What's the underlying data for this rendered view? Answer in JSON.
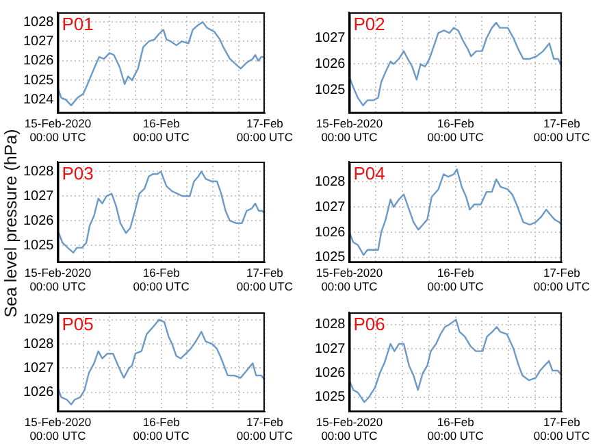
{
  "chart_data": [
    {
      "type": "line",
      "title": "P01",
      "xlim": [
        "2020-02-15T00:00",
        "2020-02-17T00:00"
      ],
      "ylim": [
        1023.3,
        1028.5
      ],
      "yticks": [
        1024,
        1025,
        1026,
        1027,
        1028
      ],
      "grid": true,
      "marker": "none",
      "xticks": [
        {
          "value": "2020-02-15T00:00",
          "label": "15-Feb-2020\n00:00 UTC"
        },
        {
          "value": "2020-02-15T06:00",
          "label": null
        },
        {
          "value": "2020-02-15T12:00",
          "label": null
        },
        {
          "value": "2020-02-15T18:00",
          "label": null
        },
        {
          "value": "2020-02-16T00:00",
          "label": "16-Feb\n00:00 UTC"
        },
        {
          "value": "2020-02-16T06:00",
          "label": null
        },
        {
          "value": "2020-02-16T12:00",
          "label": null
        },
        {
          "value": "2020-02-16T18:00",
          "label": null
        },
        {
          "value": "2020-02-17T00:00",
          "label": "17-Feb\n00:00 UTC"
        }
      ],
      "series": [
        {
          "color": "#6b9ac8",
          "x": [
            "2020-02-15T00:00",
            "2020-02-15T00:48",
            "2020-02-15T01:48",
            "2020-02-15T03:06",
            "2020-02-15T04:36",
            "2020-02-15T05:54",
            "2020-02-15T06:54",
            "2020-02-15T08:24",
            "2020-02-15T09:36",
            "2020-02-15T10:42",
            "2020-02-15T12:00",
            "2020-02-15T13:00",
            "2020-02-15T14:18",
            "2020-02-15T15:30",
            "2020-02-15T16:18",
            "2020-02-15T17:12",
            "2020-02-15T18:36",
            "2020-02-15T19:48",
            "2020-02-15T21:06",
            "2020-02-15T22:24",
            "2020-02-15T23:30",
            "2020-02-16T00:30",
            "2020-02-16T01:12",
            "2020-02-16T02:12",
            "2020-02-16T03:30",
            "2020-02-16T04:42",
            "2020-02-16T06:18",
            "2020-02-16T07:18",
            "2020-02-16T08:18",
            "2020-02-16T09:36",
            "2020-02-16T10:36",
            "2020-02-16T12:18",
            "2020-02-16T13:36",
            "2020-02-16T14:24",
            "2020-02-16T15:54",
            "2020-02-16T17:24",
            "2020-02-16T18:24",
            "2020-02-16T19:48",
            "2020-02-16T21:12",
            "2020-02-16T21:48",
            "2020-02-16T22:30",
            "2020-02-16T23:12",
            "2020-02-17T00:00"
          ],
          "values": [
            1024.6,
            1024.1,
            1024.0,
            1023.7,
            1024.1,
            1024.3,
            1024.8,
            1025.6,
            1026.2,
            1026.1,
            1026.4,
            1026.3,
            1025.7,
            1024.8,
            1025.2,
            1025.0,
            1025.6,
            1026.7,
            1027.0,
            1027.1,
            1027.4,
            1027.6,
            1027.1,
            1027.0,
            1026.8,
            1027.0,
            1026.9,
            1027.6,
            1027.8,
            1028.0,
            1027.7,
            1027.5,
            1027.1,
            1026.7,
            1026.1,
            1025.8,
            1025.6,
            1025.9,
            1026.1,
            1026.3,
            1026.0,
            1026.2,
            1026.2
          ]
        }
      ]
    },
    {
      "type": "line",
      "title": "P02",
      "xlim": [
        "2020-02-15T00:00",
        "2020-02-17T00:00"
      ],
      "ylim": [
        1024.1,
        1028.0
      ],
      "yticks": [
        1025,
        1026,
        1027
      ],
      "grid": true,
      "marker": "none",
      "xticks": [
        {
          "value": "2020-02-15T00:00",
          "label": "15-Feb-2020\n00:00 UTC"
        },
        {
          "value": "2020-02-15T06:00",
          "label": null
        },
        {
          "value": "2020-02-15T12:00",
          "label": null
        },
        {
          "value": "2020-02-15T18:00",
          "label": null
        },
        {
          "value": "2020-02-16T00:00",
          "label": "16-Feb\n00:00 UTC"
        },
        {
          "value": "2020-02-16T06:00",
          "label": null
        },
        {
          "value": "2020-02-16T12:00",
          "label": null
        },
        {
          "value": "2020-02-16T18:00",
          "label": null
        },
        {
          "value": "2020-02-17T00:00",
          "label": "17-Feb\n00:00 UTC"
        }
      ],
      "series": [
        {
          "color": "#6b9ac8",
          "x": [
            "2020-02-15T00:00",
            "2020-02-15T00:54",
            "2020-02-15T01:54",
            "2020-02-15T03:06",
            "2020-02-15T04:06",
            "2020-02-15T05:30",
            "2020-02-15T06:30",
            "2020-02-15T07:12",
            "2020-02-15T08:12",
            "2020-02-15T09:18",
            "2020-02-15T10:00",
            "2020-02-15T11:12",
            "2020-02-15T12:18",
            "2020-02-15T13:12",
            "2020-02-15T14:12",
            "2020-02-15T15:12",
            "2020-02-15T16:06",
            "2020-02-15T17:06",
            "2020-02-15T18:06",
            "2020-02-15T19:06",
            "2020-02-15T20:06",
            "2020-02-15T21:24",
            "2020-02-15T22:36",
            "2020-02-15T23:36",
            "2020-02-16T00:36",
            "2020-02-16T01:42",
            "2020-02-16T02:42",
            "2020-02-16T03:30",
            "2020-02-16T04:42",
            "2020-02-16T06:00",
            "2020-02-16T07:00",
            "2020-02-16T08:12",
            "2020-02-16T09:12",
            "2020-02-16T10:00",
            "2020-02-16T11:48",
            "2020-02-16T13:06",
            "2020-02-16T14:06",
            "2020-02-16T15:18",
            "2020-02-16T16:48",
            "2020-02-16T18:18",
            "2020-02-16T19:48",
            "2020-02-16T21:12",
            "2020-02-16T22:12",
            "2020-02-16T23:12",
            "2020-02-17T00:00"
          ],
          "values": [
            1025.5,
            1025.1,
            1024.7,
            1024.4,
            1024.6,
            1024.6,
            1024.7,
            1025.3,
            1025.7,
            1026.1,
            1026.0,
            1026.2,
            1026.5,
            1026.2,
            1025.9,
            1025.4,
            1026.0,
            1025.9,
            1026.2,
            1026.7,
            1027.2,
            1027.3,
            1027.2,
            1027.4,
            1027.3,
            1026.9,
            1026.6,
            1026.3,
            1026.5,
            1026.5,
            1027.0,
            1027.4,
            1027.6,
            1027.4,
            1027.4,
            1027.0,
            1026.6,
            1026.2,
            1026.2,
            1026.3,
            1026.5,
            1026.8,
            1026.2,
            1026.2,
            1025.9
          ]
        }
      ]
    },
    {
      "type": "line",
      "title": "P03",
      "ylabel": "Sea level pressure (hPa)",
      "xlim": [
        "2020-02-15T00:00",
        "2020-02-17T00:00"
      ],
      "ylim": [
        1024.3,
        1028.4
      ],
      "yticks": [
        1025,
        1026,
        1027,
        1028
      ],
      "grid": true,
      "marker": "none",
      "xticks": [
        {
          "value": "2020-02-15T00:00",
          "label": "15-Feb-2020\n00:00 UTC"
        },
        {
          "value": "2020-02-15T06:00",
          "label": null
        },
        {
          "value": "2020-02-15T12:00",
          "label": null
        },
        {
          "value": "2020-02-15T18:00",
          "label": null
        },
        {
          "value": "2020-02-16T00:00",
          "label": "16-Feb\n00:00 UTC"
        },
        {
          "value": "2020-02-16T06:00",
          "label": null
        },
        {
          "value": "2020-02-16T12:00",
          "label": null
        },
        {
          "value": "2020-02-16T18:00",
          "label": null
        },
        {
          "value": "2020-02-17T00:00",
          "label": "17-Feb\n00:00 UTC"
        }
      ],
      "series": [
        {
          "color": "#6b9ac8",
          "x": [
            "2020-02-15T00:00",
            "2020-02-15T01:06",
            "2020-02-15T02:18",
            "2020-02-15T03:36",
            "2020-02-15T04:24",
            "2020-02-15T05:36",
            "2020-02-15T06:36",
            "2020-02-15T07:24",
            "2020-02-15T08:24",
            "2020-02-15T09:24",
            "2020-02-15T10:18",
            "2020-02-15T11:18",
            "2020-02-15T12:30",
            "2020-02-15T13:30",
            "2020-02-15T14:30",
            "2020-02-15T15:48",
            "2020-02-15T16:48",
            "2020-02-15T17:54",
            "2020-02-15T18:54",
            "2020-02-15T20:06",
            "2020-02-15T21:06",
            "2020-02-15T22:06",
            "2020-02-15T23:06",
            "2020-02-15T23:54",
            "2020-02-16T01:12",
            "2020-02-16T02:30",
            "2020-02-16T03:42",
            "2020-02-16T04:54",
            "2020-02-16T06:36",
            "2020-02-16T07:36",
            "2020-02-16T08:36",
            "2020-02-16T09:18",
            "2020-02-16T10:18",
            "2020-02-16T11:36",
            "2020-02-16T12:54",
            "2020-02-16T13:54",
            "2020-02-16T14:54",
            "2020-02-16T15:54",
            "2020-02-16T17:24",
            "2020-02-16T18:42",
            "2020-02-16T19:48",
            "2020-02-16T21:00",
            "2020-02-16T21:48",
            "2020-02-16T22:36",
            "2020-02-16T23:24",
            "2020-02-17T00:00"
          ],
          "values": [
            1025.6,
            1025.1,
            1024.9,
            1024.7,
            1024.9,
            1024.9,
            1025.1,
            1025.8,
            1026.2,
            1026.9,
            1026.7,
            1027.0,
            1027.1,
            1026.6,
            1025.9,
            1025.5,
            1025.7,
            1026.4,
            1027.1,
            1027.3,
            1027.8,
            1027.9,
            1027.9,
            1028.0,
            1027.4,
            1027.2,
            1027.1,
            1027.0,
            1027.0,
            1027.6,
            1027.8,
            1028.0,
            1027.7,
            1027.6,
            1027.6,
            1027.1,
            1026.4,
            1026.0,
            1025.9,
            1025.9,
            1026.4,
            1026.5,
            1026.7,
            1026.4,
            1026.4,
            1026.3
          ]
        }
      ]
    },
    {
      "type": "line",
      "title": "P04",
      "xlim": [
        "2020-02-15T00:00",
        "2020-02-17T00:00"
      ],
      "ylim": [
        1024.8,
        1028.8
      ],
      "yticks": [
        1025,
        1026,
        1027,
        1028
      ],
      "grid": true,
      "marker": "none",
      "xticks": [
        {
          "value": "2020-02-15T00:00",
          "label": "15-Feb-2020\n00:00 UTC"
        },
        {
          "value": "2020-02-15T06:00",
          "label": null
        },
        {
          "value": "2020-02-15T12:00",
          "label": null
        },
        {
          "value": "2020-02-15T18:00",
          "label": null
        },
        {
          "value": "2020-02-16T00:00",
          "label": "16-Feb\n00:00 UTC"
        },
        {
          "value": "2020-02-16T06:00",
          "label": null
        },
        {
          "value": "2020-02-16T12:00",
          "label": null
        },
        {
          "value": "2020-02-16T18:00",
          "label": null
        },
        {
          "value": "2020-02-17T00:00",
          "label": "17-Feb\n00:00 UTC"
        }
      ],
      "series": [
        {
          "color": "#6b9ac8",
          "x": [
            "2020-02-15T00:00",
            "2020-02-15T00:54",
            "2020-02-15T01:54",
            "2020-02-15T03:12",
            "2020-02-15T04:06",
            "2020-02-15T05:30",
            "2020-02-15T06:30",
            "2020-02-15T07:12",
            "2020-02-15T08:12",
            "2020-02-15T09:18",
            "2020-02-15T10:00",
            "2020-02-15T11:12",
            "2020-02-15T12:18",
            "2020-02-15T13:30",
            "2020-02-15T14:30",
            "2020-02-15T15:36",
            "2020-02-15T16:36",
            "2020-02-15T17:36",
            "2020-02-15T18:36",
            "2020-02-15T20:06",
            "2020-02-15T21:18",
            "2020-02-15T22:18",
            "2020-02-15T23:36",
            "2020-02-16T00:18",
            "2020-02-16T01:24",
            "2020-02-16T02:24",
            "2020-02-16T03:12",
            "2020-02-16T04:12",
            "2020-02-16T05:42",
            "2020-02-16T07:00",
            "2020-02-16T08:12",
            "2020-02-16T09:12",
            "2020-02-16T10:12",
            "2020-02-16T11:48",
            "2020-02-16T12:48",
            "2020-02-16T13:48",
            "2020-02-16T15:18",
            "2020-02-16T16:48",
            "2020-02-16T18:06",
            "2020-02-16T19:18",
            "2020-02-16T20:30",
            "2020-02-16T21:24",
            "2020-02-16T22:24",
            "2020-02-16T23:24",
            "2020-02-17T00:00"
          ],
          "values": [
            1026.0,
            1025.6,
            1025.5,
            1025.1,
            1025.3,
            1025.3,
            1025.3,
            1026.0,
            1026.5,
            1027.3,
            1027.0,
            1027.3,
            1027.5,
            1026.9,
            1026.4,
            1026.1,
            1026.3,
            1026.5,
            1027.4,
            1027.7,
            1028.3,
            1028.2,
            1028.3,
            1028.5,
            1027.8,
            1027.4,
            1026.9,
            1027.1,
            1027.1,
            1027.6,
            1027.6,
            1028.1,
            1027.8,
            1027.7,
            1027.5,
            1027.1,
            1026.4,
            1026.3,
            1026.4,
            1026.6,
            1026.9,
            1026.7,
            1026.5,
            1026.4,
            1026.3
          ]
        }
      ]
    },
    {
      "type": "line",
      "title": "P05",
      "xlim": [
        "2020-02-15T00:00",
        "2020-02-17T00:00"
      ],
      "ylim": [
        1025.2,
        1029.3
      ],
      "yticks": [
        1026,
        1027,
        1028,
        1029
      ],
      "grid": true,
      "marker": "none",
      "xticks": [
        {
          "value": "2020-02-15T00:00",
          "label": "15-Feb-2020\n00:00 UTC"
        },
        {
          "value": "2020-02-15T06:00",
          "label": null
        },
        {
          "value": "2020-02-15T12:00",
          "label": null
        },
        {
          "value": "2020-02-15T18:00",
          "label": null
        },
        {
          "value": "2020-02-16T00:00",
          "label": "16-Feb\n00:00 UTC"
        },
        {
          "value": "2020-02-16T06:00",
          "label": null
        },
        {
          "value": "2020-02-16T12:00",
          "label": null
        },
        {
          "value": "2020-02-16T18:00",
          "label": null
        },
        {
          "value": "2020-02-17T00:00",
          "label": "17-Feb\n00:00 UTC"
        }
      ],
      "series": [
        {
          "color": "#6b9ac8",
          "x": [
            "2020-02-15T00:00",
            "2020-02-15T00:48",
            "2020-02-15T02:06",
            "2020-02-15T03:06",
            "2020-02-15T03:54",
            "2020-02-15T05:12",
            "2020-02-15T06:12",
            "2020-02-15T07:12",
            "2020-02-15T08:24",
            "2020-02-15T09:24",
            "2020-02-15T10:18",
            "2020-02-15T11:30",
            "2020-02-15T12:48",
            "2020-02-15T14:00",
            "2020-02-15T15:18",
            "2020-02-15T16:30",
            "2020-02-15T17:12",
            "2020-02-15T18:00",
            "2020-02-15T19:24",
            "2020-02-15T20:36",
            "2020-02-15T22:06",
            "2020-02-15T23:30",
            "2020-02-16T00:42",
            "2020-02-16T01:42",
            "2020-02-16T02:30",
            "2020-02-16T03:30",
            "2020-02-16T04:30",
            "2020-02-16T05:42",
            "2020-02-16T06:48",
            "2020-02-16T08:00",
            "2020-02-16T09:18",
            "2020-02-16T10:18",
            "2020-02-16T11:48",
            "2020-02-16T12:54",
            "2020-02-16T13:54",
            "2020-02-16T15:24",
            "2020-02-16T16:54",
            "2020-02-16T18:24",
            "2020-02-16T19:48",
            "2020-02-16T21:12",
            "2020-02-16T22:00",
            "2020-02-16T23:12",
            "2020-02-17T00:00"
          ],
          "values": [
            1026.2,
            1025.8,
            1025.7,
            1025.5,
            1025.7,
            1025.8,
            1026.1,
            1026.8,
            1027.2,
            1027.7,
            1027.4,
            1027.6,
            1027.6,
            1027.1,
            1026.6,
            1027.0,
            1027.1,
            1027.6,
            1027.7,
            1028.4,
            1028.7,
            1029.0,
            1028.9,
            1028.3,
            1028.0,
            1027.5,
            1027.4,
            1027.6,
            1027.8,
            1028.1,
            1028.5,
            1028.1,
            1028.0,
            1027.8,
            1027.4,
            1026.7,
            1026.7,
            1026.6,
            1026.9,
            1027.2,
            1026.7,
            1026.7,
            1026.5
          ]
        }
      ]
    },
    {
      "type": "line",
      "title": "P06",
      "xlim": [
        "2020-02-15T00:00",
        "2020-02-17T00:00"
      ],
      "ylim": [
        1024.4,
        1028.5
      ],
      "yticks": [
        1025,
        1026,
        1027,
        1028
      ],
      "grid": true,
      "marker": "none",
      "xticks": [
        {
          "value": "2020-02-15T00:00",
          "label": "15-Feb-2020\n00:00 UTC"
        },
        {
          "value": "2020-02-15T06:00",
          "label": null
        },
        {
          "value": "2020-02-15T12:00",
          "label": null
        },
        {
          "value": "2020-02-15T18:00",
          "label": null
        },
        {
          "value": "2020-02-16T00:00",
          "label": "16-Feb\n00:00 UTC"
        },
        {
          "value": "2020-02-16T06:00",
          "label": null
        },
        {
          "value": "2020-02-16T12:00",
          "label": null
        },
        {
          "value": "2020-02-16T18:00",
          "label": null
        },
        {
          "value": "2020-02-17T00:00",
          "label": "17-Feb\n00:00 UTC"
        }
      ],
      "series": [
        {
          "color": "#6b9ac8",
          "x": [
            "2020-02-15T00:00",
            "2020-02-15T00:54",
            "2020-02-15T01:54",
            "2020-02-15T03:24",
            "2020-02-15T04:24",
            "2020-02-15T05:48",
            "2020-02-15T06:54",
            "2020-02-15T07:54",
            "2020-02-15T09:18",
            "2020-02-15T10:12",
            "2020-02-15T11:12",
            "2020-02-15T12:18",
            "2020-02-15T13:30",
            "2020-02-15T14:30",
            "2020-02-15T15:30",
            "2020-02-15T16:36",
            "2020-02-15T17:36",
            "2020-02-15T18:24",
            "2020-02-15T19:36",
            "2020-02-15T20:36",
            "2020-02-15T21:36",
            "2020-02-15T22:36",
            "2020-02-16T00:06",
            "2020-02-16T00:54",
            "2020-02-16T02:06",
            "2020-02-16T03:24",
            "2020-02-16T04:36",
            "2020-02-16T06:06",
            "2020-02-16T07:06",
            "2020-02-16T08:18",
            "2020-02-16T09:18",
            "2020-02-16T10:06",
            "2020-02-16T11:36",
            "2020-02-16T13:06",
            "2020-02-16T14:06",
            "2020-02-16T15:06",
            "2020-02-16T16:36",
            "2020-02-16T18:06",
            "2020-02-16T19:06",
            "2020-02-16T20:06",
            "2020-02-16T21:06",
            "2020-02-16T21:54",
            "2020-02-16T23:06",
            "2020-02-17T00:00"
          ],
          "values": [
            1025.7,
            1025.3,
            1025.2,
            1024.8,
            1025.0,
            1025.4,
            1026.0,
            1026.4,
            1027.2,
            1026.9,
            1027.2,
            1027.2,
            1026.3,
            1025.9,
            1025.3,
            1026.0,
            1026.3,
            1026.9,
            1027.2,
            1027.6,
            1027.9,
            1028.0,
            1028.2,
            1027.7,
            1027.5,
            1027.1,
            1026.9,
            1026.9,
            1027.5,
            1027.7,
            1027.9,
            1027.7,
            1027.6,
            1027.0,
            1026.4,
            1025.9,
            1025.7,
            1025.8,
            1026.1,
            1026.3,
            1026.5,
            1026.1,
            1026.1,
            1025.9
          ]
        }
      ]
    }
  ]
}
